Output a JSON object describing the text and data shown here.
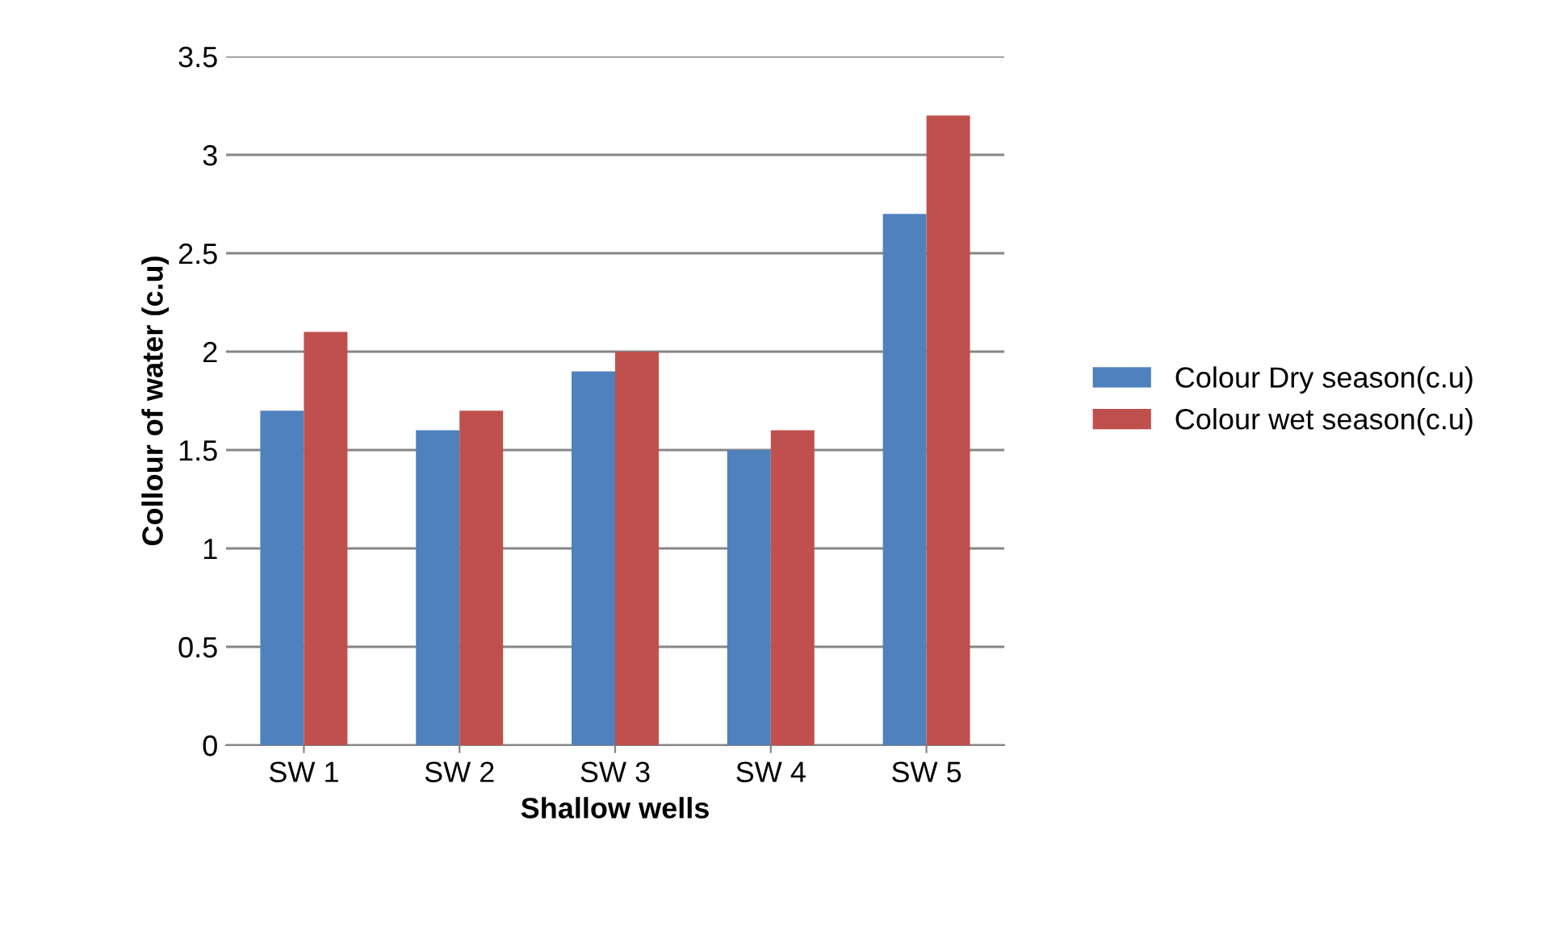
{
  "chart_data": {
    "type": "bar",
    "xlabel": "Shallow wells",
    "ylabel": "Collour of water (c.u)",
    "categories": [
      "SW 1",
      "SW 2",
      "SW 3",
      "SW 4",
      "SW 5"
    ],
    "series": [
      {
        "name": "Colour Dry season(c.u)",
        "color": "#4f81bd",
        "values": [
          1.7,
          1.6,
          1.9,
          1.5,
          2.7
        ]
      },
      {
        "name": "Colour wet season(c.u)",
        "color": "#c0504d",
        "values": [
          2.1,
          1.7,
          2.0,
          1.6,
          3.2
        ]
      }
    ],
    "ylim": [
      0,
      3.5
    ],
    "yticks": [
      0,
      0.5,
      1,
      1.5,
      2,
      2.5,
      3,
      3.5
    ],
    "grid": "y",
    "legend": "right"
  }
}
